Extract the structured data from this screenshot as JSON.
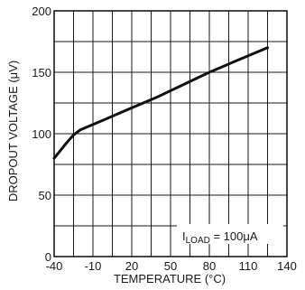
{
  "chart_data": {
    "type": "line",
    "xlabel": "TEMPERATURE (°C)",
    "ylabel": "DROPOUT VOLTAGE (μV)",
    "xlim": [
      -40,
      140
    ],
    "ylim": [
      0,
      200
    ],
    "x_ticks": [
      -40,
      -10,
      20,
      50,
      80,
      110,
      140
    ],
    "y_ticks": [
      0,
      50,
      100,
      150,
      200
    ],
    "x_gridlines": [
      -40,
      -25,
      -10,
      5,
      20,
      35,
      50,
      65,
      80,
      95,
      110,
      125,
      140
    ],
    "y_gridlines": [
      0,
      25,
      50,
      75,
      100,
      125,
      150,
      175,
      200
    ],
    "grid": true,
    "annotation": {
      "prefix": "I",
      "subscript": "LOAD",
      "suffix": " = 100μA"
    },
    "series": [
      {
        "x": [
          -40,
          -30,
          -25,
          -20,
          0,
          20,
          40,
          60,
          80,
          100,
          125
        ],
        "y": [
          80,
          93,
          99,
          103,
          112,
          121,
          130,
          140,
          150,
          159,
          170
        ]
      }
    ]
  }
}
